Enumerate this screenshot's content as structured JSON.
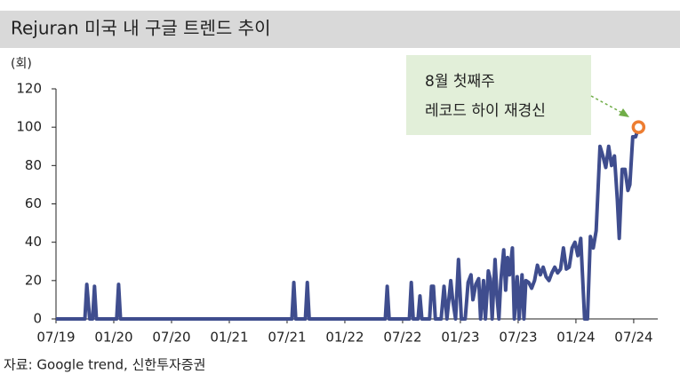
{
  "chart_data": {
    "type": "line",
    "title": "Rejuran 미국 내 구글 트렌드 추이",
    "y_unit_label": "(회)",
    "source": "자료: Google trend, 신한투자증권",
    "annotation_lines": [
      "8월 첫째주",
      "레코드 하이 재경신"
    ],
    "highlight_color": "#ed7d31",
    "x": [
      0,
      3.0,
      3.2,
      3.5,
      3.8,
      4.0,
      4.2,
      6.3,
      6.5,
      6.7,
      24.5,
      24.7,
      24.9,
      25.9,
      26.1,
      26.3,
      34.2,
      34.4,
      34.6,
      36.7,
      36.9,
      37.1,
      37.6,
      37.8,
      38.0,
      38.8,
      39.0,
      39.2,
      39.4,
      40.0,
      40.3,
      40.6,
      41.0,
      41.2,
      41.5,
      41.8,
      42.1,
      42.5,
      42.8,
      43.1,
      43.3,
      43.6,
      43.9,
      44.1,
      44.4,
      44.6,
      44.9,
      45.1,
      45.3,
      45.6,
      45.8,
      46.0,
      46.2,
      46.5,
      46.7,
      46.9,
      47.1,
      47.4,
      47.6,
      47.9,
      48.1,
      48.4,
      48.6,
      48.8,
      49.1,
      49.4,
      49.7,
      50.0,
      50.3,
      50.6,
      50.9,
      51.2,
      51.5,
      51.8,
      52.1,
      52.4,
      52.7,
      53.0,
      53.3,
      53.6,
      53.9,
      54.2,
      54.5,
      54.9,
      55.2,
      55.5,
      55.8,
      56.1,
      56.5,
      56.8,
      57.1,
      57.4,
      57.7,
      58.0,
      58.3,
      58.5,
      58.8,
      59.1,
      59.4,
      59.6,
      59.9,
      60.2,
      60.5
    ],
    "series": [
      {
        "color": "#3f4d8e",
        "values": [
          0,
          0,
          18,
          0,
          0,
          17,
          0,
          0,
          18,
          0,
          0,
          19,
          0,
          0,
          19,
          0,
          0,
          17,
          0,
          0,
          19,
          0,
          0,
          12,
          0,
          0,
          17,
          17,
          0,
          0,
          17,
          0,
          20,
          10,
          0,
          31,
          0,
          0,
          19,
          23,
          10,
          18,
          21,
          0,
          20,
          0,
          25,
          21,
          0,
          31,
          12,
          0,
          20,
          36,
          15,
          32,
          23,
          37,
          0,
          22,
          0,
          23,
          0,
          20,
          19,
          16,
          20,
          28,
          23,
          27,
          22,
          20,
          24,
          27,
          24,
          26,
          37,
          26,
          27,
          37,
          40,
          33,
          42,
          0,
          0,
          43,
          37,
          46,
          90,
          85,
          79,
          90,
          80,
          85,
          62,
          42,
          78,
          78,
          67,
          70,
          95,
          95,
          100
        ]
      }
    ],
    "xlim": [
      0,
      62.5
    ],
    "xticks": [
      {
        "value": 0,
        "label": "07/19"
      },
      {
        "value": 6,
        "label": "01/20"
      },
      {
        "value": 12,
        "label": "07/20"
      },
      {
        "value": 18,
        "label": "01/21"
      },
      {
        "value": 24,
        "label": "07/21"
      },
      {
        "value": 30,
        "label": "01/22"
      },
      {
        "value": 36,
        "label": "07/22"
      },
      {
        "value": 42,
        "label": "01/23"
      },
      {
        "value": 48,
        "label": "07/23"
      },
      {
        "value": 54,
        "label": "01/24"
      },
      {
        "value": 60,
        "label": "07/24"
      }
    ],
    "ylim": [
      0,
      120
    ],
    "yticks": [
      0,
      20,
      40,
      60,
      80,
      100,
      120
    ]
  }
}
